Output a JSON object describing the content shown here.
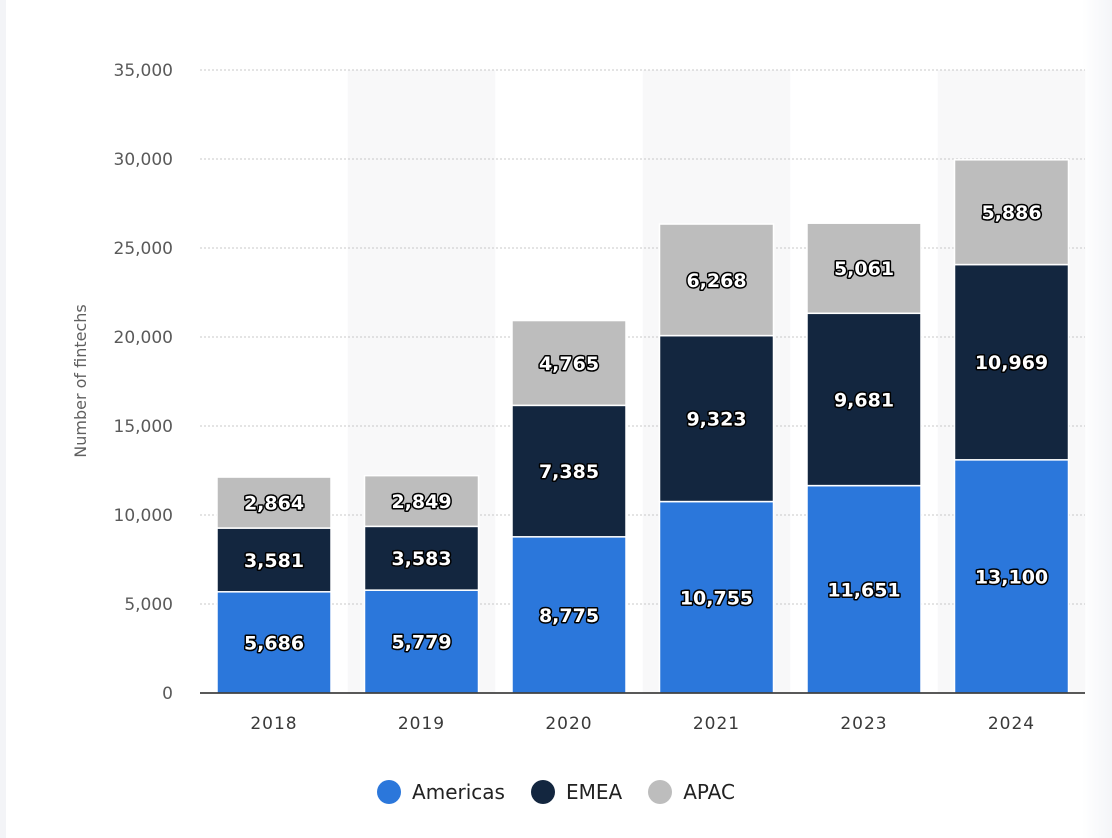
{
  "chart_data": {
    "type": "bar",
    "stacked": true,
    "categories": [
      "2018",
      "2019",
      "2020",
      "2021",
      "2023",
      "2024"
    ],
    "series": [
      {
        "name": "Americas",
        "color": "#2b77db",
        "values": [
          5686,
          5779,
          8775,
          10755,
          11651,
          13100
        ]
      },
      {
        "name": "EMEA",
        "color": "#13263f",
        "values": [
          3581,
          3583,
          7385,
          9323,
          9681,
          10969
        ]
      },
      {
        "name": "APAC",
        "color": "#bdbdbd",
        "values": [
          2864,
          2849,
          4765,
          6268,
          5061,
          5886
        ]
      }
    ],
    "data_labels": {
      "Americas": [
        "5,686",
        "5,779",
        "8,775",
        "10,755",
        "11,651",
        "13,100"
      ],
      "EMEA": [
        "3,581",
        "3,583",
        "7,385",
        "9,323",
        "9,681",
        "10,969"
      ],
      "APAC": [
        "2,864",
        "2,849",
        "4,765",
        "6,268",
        "5,061",
        "5,886"
      ]
    },
    "ylabel": "Number of fintechs",
    "xlabel": "",
    "ylim": [
      0,
      35000
    ],
    "yticks": [
      0,
      5000,
      10000,
      15000,
      20000,
      25000,
      30000,
      35000
    ],
    "ytick_labels": [
      "0",
      "5,000",
      "10,000",
      "15,000",
      "20,000",
      "25,000",
      "30,000",
      "35,000"
    ],
    "grid": true,
    "legend_position": "bottom-center"
  },
  "legend": {
    "items": [
      {
        "label": "Americas",
        "color": "#2b77db"
      },
      {
        "label": "EMEA",
        "color": "#13263f"
      },
      {
        "label": "APAC",
        "color": "#bdbdbd"
      }
    ]
  }
}
